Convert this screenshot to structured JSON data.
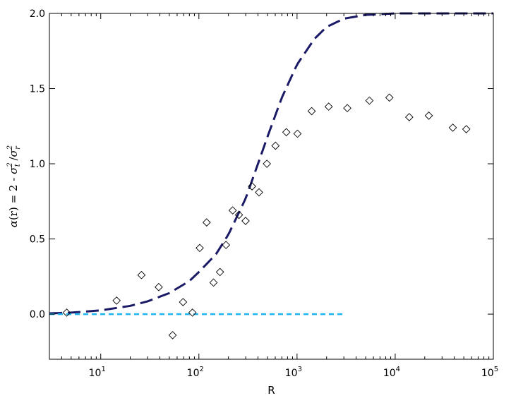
{
  "chart_data": {
    "type": "scatter",
    "title": "",
    "xlabel": "R",
    "ylabel": "α(r) = 2 - σt² /σr²",
    "xscale": "log",
    "xlim": [
      3,
      100000
    ],
    "ylim": [
      -0.3,
      2.0
    ],
    "grid": false,
    "legend": "none",
    "x_ticks": [
      {
        "base": "10",
        "exp": "1",
        "value": 10
      },
      {
        "base": "10",
        "exp": "2",
        "value": 100
      },
      {
        "base": "10",
        "exp": "3",
        "value": 1000
      },
      {
        "base": "10",
        "exp": "4",
        "value": 10000
      },
      {
        "base": "10",
        "exp": "5",
        "value": 100000
      }
    ],
    "y_ticks": [
      {
        "label": "0.0",
        "value": 0.0
      },
      {
        "label": "0.5",
        "value": 0.5
      },
      {
        "label": "1.0",
        "value": 1.0
      },
      {
        "label": "1.5",
        "value": 1.5
      },
      {
        "label": "2.0",
        "value": 2.0
      }
    ],
    "series": [
      {
        "kind": "scatter",
        "marker": "diamond-open",
        "color": "#000000",
        "points": [
          [
            4.5,
            0.01
          ],
          [
            14.5,
            0.09
          ],
          [
            26,
            0.26
          ],
          [
            39,
            0.18
          ],
          [
            54,
            -0.14
          ],
          [
            69,
            0.08
          ],
          [
            86,
            0.01
          ],
          [
            102,
            0.44
          ],
          [
            120,
            0.61
          ],
          [
            141,
            0.21
          ],
          [
            164,
            0.28
          ],
          [
            189,
            0.46
          ],
          [
            221,
            0.69
          ],
          [
            256,
            0.66
          ],
          [
            299,
            0.62
          ],
          [
            348,
            0.85
          ],
          [
            410,
            0.81
          ],
          [
            493,
            1.0
          ],
          [
            603,
            1.12
          ],
          [
            778,
            1.21
          ],
          [
            1010,
            1.2
          ],
          [
            1410,
            1.35
          ],
          [
            2100,
            1.38
          ],
          [
            3250,
            1.37
          ],
          [
            5460,
            1.42
          ],
          [
            8730,
            1.44
          ],
          [
            13900,
            1.31
          ],
          [
            22000,
            1.32
          ],
          [
            38600,
            1.24
          ],
          [
            53000,
            1.23
          ]
        ]
      },
      {
        "kind": "line",
        "style": "long-dash",
        "color": "#1a1a66",
        "x": [
          3,
          5,
          10,
          20,
          30,
          50,
          80,
          100,
          150,
          200,
          300,
          400,
          500,
          700,
          1000,
          1500,
          2000,
          3000,
          5000,
          10000,
          20000,
          100000
        ],
        "y": [
          0.005,
          0.01,
          0.025,
          0.055,
          0.085,
          0.14,
          0.22,
          0.28,
          0.4,
          0.53,
          0.77,
          1.0,
          1.18,
          1.44,
          1.66,
          1.83,
          1.91,
          1.965,
          1.99,
          2.0,
          2.0,
          2.0
        ]
      },
      {
        "kind": "line",
        "style": "short-dash",
        "color": "#1eb4f0",
        "x": [
          3,
          3100
        ],
        "y": [
          0,
          0
        ]
      }
    ]
  }
}
